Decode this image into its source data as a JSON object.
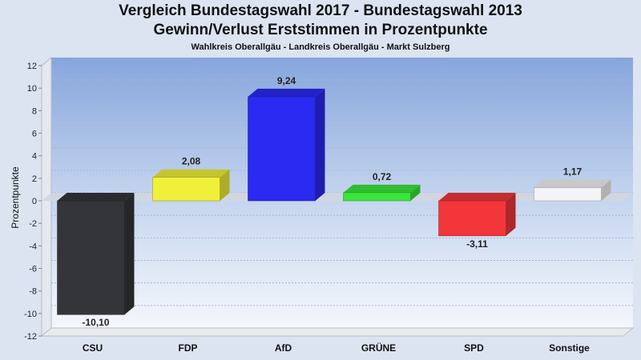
{
  "chart_data": {
    "type": "bar",
    "title": "Vergleich Bundestagswahl 2017 - Bundestagswahl 2013",
    "subtitle": "Gewinn/Verlust Erststimmen in Prozentpunkte",
    "subsubtitle": "Wahlkreis Oberallgäu - Landkreis Oberallgäu - Markt Sulzberg",
    "ylabel": "Prozentpunkte",
    "xlabel": "",
    "ylim": [
      -12,
      12
    ],
    "yticks": [
      "12",
      "10",
      "8",
      "6",
      "4",
      "2",
      "0",
      "-2",
      "-4",
      "-6",
      "-8",
      "-10",
      "-12"
    ],
    "categories": [
      "CSU",
      "FDP",
      "AfD",
      "GRÜNE",
      "SPD",
      "Sonstige"
    ],
    "values": [
      -10.1,
      2.08,
      9.24,
      0.72,
      -3.11,
      1.17
    ],
    "value_labels": [
      "-10,10",
      "2,08",
      "9,24",
      "0,72",
      "-3,11",
      "1,17"
    ],
    "colors": [
      "#333538",
      "#f0f03a",
      "#2a2af2",
      "#3ae63a",
      "#f2363a",
      "#f4f4f6"
    ],
    "grid": true,
    "legend": "none"
  }
}
